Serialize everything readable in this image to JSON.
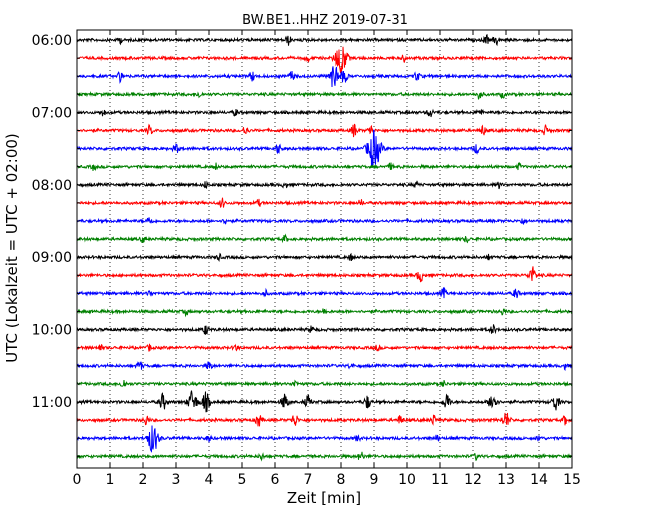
{
  "chart_data": {
    "type": "line",
    "title": "BW.BE1..HHZ 2019-07-31",
    "xlabel": "Zeit  [min]",
    "ylabel": "UTC (Lokalzeit = UTC + 02:00)",
    "xlim": [
      0,
      15
    ],
    "x_ticks": [
      0,
      1,
      2,
      3,
      4,
      5,
      6,
      7,
      8,
      9,
      10,
      11,
      12,
      13,
      14,
      15
    ],
    "y_tick_labels": [
      "06:00",
      "07:00",
      "08:00",
      "09:00",
      "10:00",
      "11:00"
    ],
    "grid": "vertical dotted",
    "trace_colors": [
      "#000000",
      "#ff0000",
      "#0000ff",
      "#008000"
    ],
    "traces": [
      {
        "start": "06:00",
        "events": [
          [
            1.3,
            0.2
          ],
          [
            6.4,
            0.3
          ],
          [
            12.4,
            0.3
          ],
          [
            12.7,
            0.3
          ]
        ]
      },
      {
        "start": "06:15",
        "events": [
          [
            7.0,
            0.2
          ],
          [
            8.0,
            1.0
          ],
          [
            9.9,
            0.2
          ]
        ]
      },
      {
        "start": "06:30",
        "events": [
          [
            1.3,
            0.3
          ],
          [
            5.3,
            0.3
          ],
          [
            6.5,
            0.3
          ],
          [
            7.8,
            0.8
          ],
          [
            8.1,
            0.4
          ],
          [
            10.3,
            0.3
          ]
        ]
      },
      {
        "start": "06:45",
        "events": [
          [
            3.7,
            0.2
          ],
          [
            12.2,
            0.3
          ],
          [
            12.9,
            0.2
          ]
        ]
      },
      {
        "start": "07:00",
        "events": [
          [
            0.8,
            0.2
          ],
          [
            4.8,
            0.2
          ],
          [
            10.7,
            0.3
          ],
          [
            12.2,
            0.2
          ]
        ]
      },
      {
        "start": "07:15",
        "events": [
          [
            2.2,
            0.3
          ],
          [
            5.1,
            0.3
          ],
          [
            8.4,
            0.4
          ],
          [
            8.9,
            0.3
          ],
          [
            12.3,
            0.3
          ],
          [
            14.2,
            0.3
          ]
        ]
      },
      {
        "start": "07:30",
        "events": [
          [
            3.0,
            0.3
          ],
          [
            6.1,
            0.3
          ],
          [
            9.0,
            1.2
          ],
          [
            12.1,
            0.3
          ]
        ]
      },
      {
        "start": "07:45",
        "events": [
          [
            0.5,
            0.2
          ],
          [
            4.2,
            0.2
          ],
          [
            9.5,
            0.2
          ],
          [
            13.4,
            0.2
          ]
        ]
      },
      {
        "start": "08:00",
        "events": [
          [
            3.9,
            0.2
          ],
          [
            6.3,
            0.2
          ],
          [
            10.3,
            0.2
          ],
          [
            12.8,
            0.2
          ]
        ]
      },
      {
        "start": "08:15",
        "events": [
          [
            4.4,
            0.3
          ],
          [
            5.5,
            0.2
          ],
          [
            8.6,
            0.2
          ]
        ]
      },
      {
        "start": "08:30",
        "events": [
          [
            2.2,
            0.3
          ],
          [
            4.5,
            0.2
          ],
          [
            13.5,
            0.2
          ]
        ]
      },
      {
        "start": "08:45",
        "events": [
          [
            2.0,
            0.2
          ],
          [
            6.3,
            0.2
          ],
          [
            11.8,
            0.2
          ]
        ]
      },
      {
        "start": "09:00",
        "events": [
          [
            4.3,
            0.2
          ],
          [
            8.3,
            0.2
          ],
          [
            12.5,
            0.2
          ]
        ]
      },
      {
        "start": "09:15",
        "events": [
          [
            10.4,
            0.4
          ],
          [
            13.8,
            0.5
          ]
        ]
      },
      {
        "start": "09:30",
        "events": [
          [
            2.2,
            0.2
          ],
          [
            5.7,
            0.2
          ],
          [
            11.1,
            0.3
          ],
          [
            13.3,
            0.3
          ]
        ]
      },
      {
        "start": "09:45",
        "events": [
          [
            3.3,
            0.2
          ],
          [
            7.5,
            0.2
          ],
          [
            12.9,
            0.2
          ]
        ]
      },
      {
        "start": "10:00",
        "events": [
          [
            3.9,
            0.3
          ],
          [
            7.1,
            0.2
          ],
          [
            12.6,
            0.3
          ]
        ]
      },
      {
        "start": "10:15",
        "events": [
          [
            0.7,
            0.2
          ],
          [
            2.2,
            0.2
          ],
          [
            4.8,
            0.2
          ],
          [
            9.1,
            0.2
          ]
        ]
      },
      {
        "start": "10:30",
        "events": [
          [
            1.9,
            0.3
          ],
          [
            4.0,
            0.3
          ],
          [
            8.3,
            0.2
          ],
          [
            14.8,
            0.2
          ]
        ]
      },
      {
        "start": "10:45",
        "events": [
          [
            1.4,
            0.3
          ],
          [
            6.6,
            0.2
          ],
          [
            11.1,
            0.2
          ]
        ]
      },
      {
        "start": "11:00",
        "events": [
          [
            2.6,
            0.5
          ],
          [
            3.5,
            0.7
          ],
          [
            3.9,
            0.6
          ],
          [
            6.3,
            0.5
          ],
          [
            7.0,
            0.4
          ],
          [
            8.8,
            0.4
          ],
          [
            11.2,
            0.5
          ],
          [
            12.6,
            0.6
          ],
          [
            14.5,
            0.5
          ]
        ]
      },
      {
        "start": "11:15",
        "events": [
          [
            2.1,
            0.3
          ],
          [
            5.5,
            0.4
          ],
          [
            6.6,
            0.4
          ],
          [
            9.8,
            0.3
          ],
          [
            10.8,
            0.3
          ],
          [
            13.0,
            0.5
          ],
          [
            14.8,
            0.3
          ]
        ]
      },
      {
        "start": "11:30",
        "events": [
          [
            2.3,
            0.9
          ],
          [
            4.0,
            0.2
          ],
          [
            8.5,
            0.2
          ],
          [
            10.9,
            0.2
          ],
          [
            14.0,
            0.2
          ]
        ]
      },
      {
        "start": "11:45",
        "events": [
          [
            5.6,
            0.2
          ],
          [
            8.6,
            0.3
          ],
          [
            12.1,
            0.2
          ]
        ]
      }
    ]
  }
}
